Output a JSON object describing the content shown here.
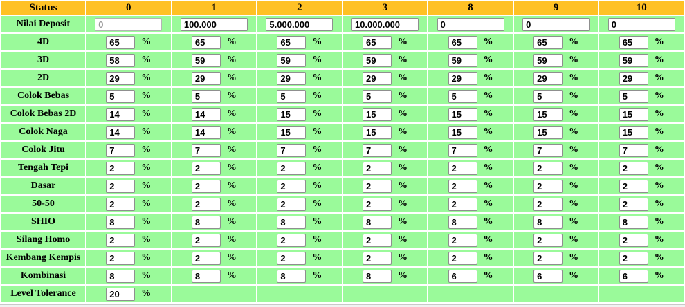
{
  "colors": {
    "header_bg": "#FFC125",
    "cell_bg": "#9AFA9A",
    "page_bg": "#FFFFFF"
  },
  "table": {
    "header": {
      "label": "Status",
      "columns": [
        "0",
        "1",
        "2",
        "3",
        "8",
        "9",
        "10"
      ]
    },
    "deposit_row": {
      "label": "Nilai Deposit",
      "values": [
        "0",
        "100.000",
        "5.000.000",
        "10.000.000",
        "0",
        "0",
        "0"
      ],
      "disabled": [
        true,
        false,
        false,
        false,
        false,
        false,
        false
      ]
    },
    "percent_suffix": "%",
    "rows": [
      {
        "label": "4D",
        "values": [
          "65",
          "65",
          "65",
          "65",
          "65",
          "65",
          "65"
        ]
      },
      {
        "label": "3D",
        "values": [
          "58",
          "59",
          "59",
          "59",
          "59",
          "59",
          "59"
        ]
      },
      {
        "label": "2D",
        "values": [
          "29",
          "29",
          "29",
          "29",
          "29",
          "29",
          "29"
        ]
      },
      {
        "label": "Colok Bebas",
        "values": [
          "5",
          "5",
          "5",
          "5",
          "5",
          "5",
          "5"
        ]
      },
      {
        "label": "Colok Bebas 2D",
        "values": [
          "14",
          "14",
          "15",
          "15",
          "15",
          "15",
          "15"
        ]
      },
      {
        "label": "Colok Naga",
        "values": [
          "14",
          "14",
          "15",
          "15",
          "15",
          "15",
          "15"
        ]
      },
      {
        "label": "Colok Jitu",
        "values": [
          "7",
          "7",
          "7",
          "7",
          "7",
          "7",
          "7"
        ]
      },
      {
        "label": "Tengah Tepi",
        "values": [
          "2",
          "2",
          "2",
          "2",
          "2",
          "2",
          "2"
        ]
      },
      {
        "label": "Dasar",
        "values": [
          "2",
          "2",
          "2",
          "2",
          "2",
          "2",
          "2"
        ]
      },
      {
        "label": "50-50",
        "values": [
          "2",
          "2",
          "2",
          "2",
          "2",
          "2",
          "2"
        ]
      },
      {
        "label": "SHIO",
        "values": [
          "8",
          "8",
          "8",
          "8",
          "8",
          "8",
          "8"
        ]
      },
      {
        "label": "Silang Homo",
        "values": [
          "2",
          "2",
          "2",
          "2",
          "2",
          "2",
          "2"
        ]
      },
      {
        "label": "Kembang Kempis",
        "values": [
          "2",
          "2",
          "2",
          "2",
          "2",
          "2",
          "2"
        ]
      },
      {
        "label": "Kombinasi",
        "values": [
          "8",
          "8",
          "8",
          "8",
          "6",
          "6",
          "6"
        ]
      },
      {
        "label": "Level Tolerance",
        "values": [
          "20",
          "",
          "",
          "",
          "",
          "",
          ""
        ]
      }
    ]
  }
}
